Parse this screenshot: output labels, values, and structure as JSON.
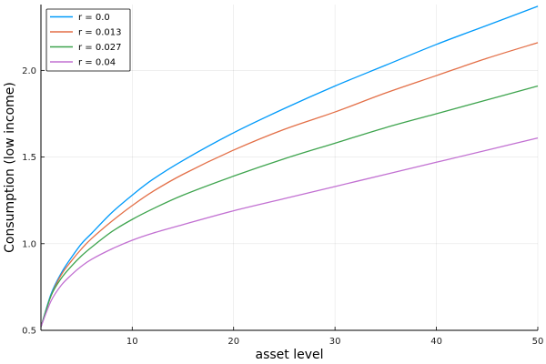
{
  "chart_data": {
    "type": "line",
    "title": "",
    "xlabel": "asset level",
    "ylabel": "Consumption (low income)",
    "xlim": [
      1,
      50
    ],
    "ylim": [
      0.5,
      2.38
    ],
    "xticks": [
      10,
      20,
      30,
      40,
      50
    ],
    "yticks": [
      0.5,
      1.0,
      1.5,
      2.0
    ],
    "xtick_labels": [
      "10",
      "20",
      "30",
      "40",
      "50"
    ],
    "ytick_labels": [
      "0.5",
      "1.0",
      "1.5",
      "2.0"
    ],
    "grid": true,
    "legend_position": "top-left",
    "x": [
      1,
      2,
      3,
      4,
      5,
      6,
      8,
      10,
      12,
      15,
      20,
      25,
      30,
      35,
      40,
      45,
      50
    ],
    "series": [
      {
        "name": "r = 0.0",
        "color": "#009AFA",
        "values": [
          0.52,
          0.71,
          0.83,
          0.92,
          1.0,
          1.06,
          1.18,
          1.28,
          1.37,
          1.48,
          1.64,
          1.78,
          1.91,
          2.03,
          2.15,
          2.26,
          2.37
        ]
      },
      {
        "name": "r = 0.013",
        "color": "#E36F47",
        "values": [
          0.52,
          0.7,
          0.82,
          0.9,
          0.97,
          1.03,
          1.13,
          1.22,
          1.3,
          1.4,
          1.54,
          1.66,
          1.76,
          1.87,
          1.97,
          2.07,
          2.16
        ]
      },
      {
        "name": "r = 0.027",
        "color": "#3EA44E",
        "values": [
          0.52,
          0.7,
          0.8,
          0.87,
          0.93,
          0.98,
          1.07,
          1.14,
          1.2,
          1.28,
          1.39,
          1.49,
          1.58,
          1.67,
          1.75,
          1.83,
          1.91
        ]
      },
      {
        "name": "r = 0.04",
        "color": "#C271D2",
        "values": [
          0.52,
          0.67,
          0.76,
          0.82,
          0.87,
          0.91,
          0.97,
          1.02,
          1.06,
          1.11,
          1.19,
          1.26,
          1.33,
          1.4,
          1.47,
          1.54,
          1.61
        ]
      }
    ]
  }
}
